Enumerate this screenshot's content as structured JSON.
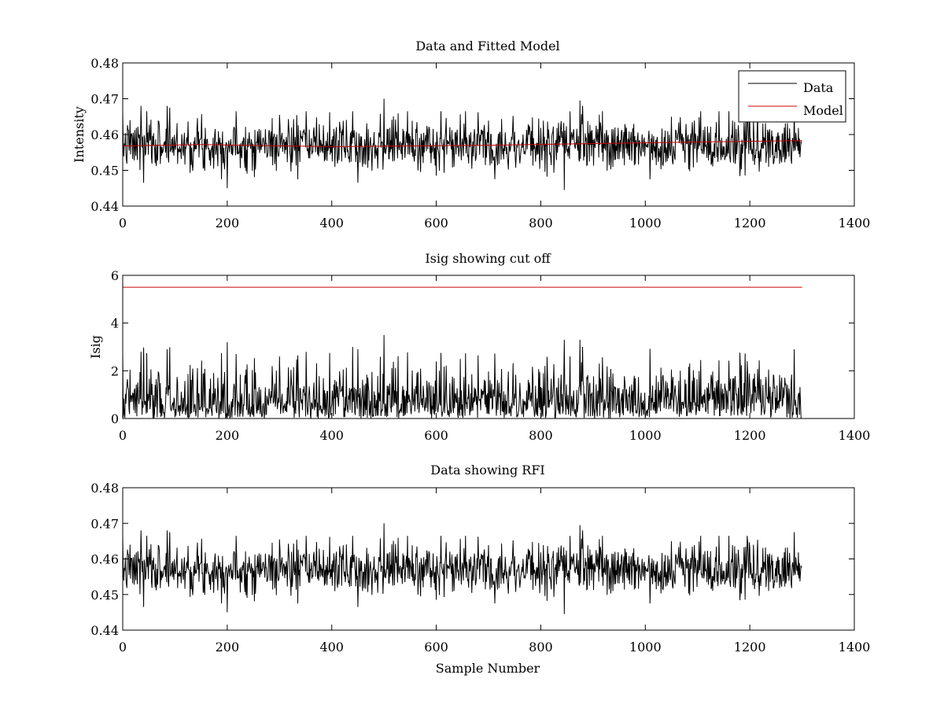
{
  "chart_data": [
    {
      "type": "line",
      "title": "Data and Fitted Model",
      "xlabel": "",
      "ylabel": "Intensity",
      "xlim": [
        0,
        1400
      ],
      "ylim": [
        0.44,
        0.48
      ],
      "xticks": [
        "0",
        "200",
        "400",
        "600",
        "800",
        "1000",
        "1200",
        "1400"
      ],
      "yticks": [
        "0.44",
        "0.45",
        "0.46",
        "0.47",
        "0.48"
      ],
      "legend": {
        "placement": "top-right",
        "entries": [
          "Data",
          "Model"
        ]
      },
      "series": [
        {
          "name": "Data",
          "color": "#000000",
          "generator": {
            "kind": "noisy",
            "n": 1300,
            "mean": 0.4572,
            "sd": 0.0035,
            "seed": 7
          },
          "peaks": [
            [
              20,
              0.4605
            ],
            [
              35,
              0.468
            ],
            [
              40,
              0.4465
            ],
            [
              85,
              0.468
            ],
            [
              90,
              0.4675
            ],
            [
              200,
              0.445
            ],
            [
              300,
              0.4655
            ],
            [
              335,
              0.4475
            ],
            [
              440,
              0.4665
            ],
            [
              450,
              0.4465
            ],
            [
              500,
              0.47
            ],
            [
              545,
              0.4665
            ],
            [
              600,
              0.4485
            ],
            [
              845,
              0.4445
            ],
            [
              875,
              0.4695
            ],
            [
              880,
              0.468
            ],
            [
              1195,
              0.4665
            ],
            [
              1285,
              0.4675
            ],
            [
              1300,
              0.4575
            ]
          ]
        },
        {
          "name": "Model",
          "color": "#cc0000",
          "x": [
            0,
            150,
            400,
            700,
            1000,
            1300
          ],
          "y": [
            0.4568,
            0.4572,
            0.4566,
            0.457,
            0.4577,
            0.4583
          ]
        }
      ]
    },
    {
      "type": "line",
      "title": "Isig showing cut off",
      "xlabel": "",
      "ylabel": "Isig",
      "xlim": [
        0,
        1400
      ],
      "ylim": [
        0,
        6
      ],
      "xticks": [
        "0",
        "200",
        "400",
        "600",
        "800",
        "1000",
        "1200",
        "1400"
      ],
      "yticks": [
        "0",
        "2",
        "4",
        "6"
      ],
      "series": [
        {
          "name": "Isig",
          "color": "#000000",
          "derived_from": 0,
          "peaks": [
            [
              35,
              2.8
            ],
            [
              85,
              2.9
            ],
            [
              200,
              3.2
            ],
            [
              300,
              2.6
            ],
            [
              440,
              3.0
            ],
            [
              500,
              3.5
            ],
            [
              845,
              3.3
            ],
            [
              875,
              3.3
            ],
            [
              1285,
              2.9
            ]
          ]
        },
        {
          "name": "cut off",
          "color": "#cc0000",
          "x": [
            0,
            1300
          ],
          "y": [
            5.5,
            5.5
          ]
        }
      ]
    },
    {
      "type": "line",
      "title": "Data showing RFI",
      "xlabel": "Sample Number",
      "ylabel": "",
      "xlim": [
        0,
        1400
      ],
      "ylim": [
        0.44,
        0.48
      ],
      "xticks": [
        "0",
        "200",
        "400",
        "600",
        "800",
        "1000",
        "1200",
        "1400"
      ],
      "yticks": [
        "0.44",
        "0.45",
        "0.46",
        "0.47",
        "0.48"
      ],
      "series": [
        {
          "name": "Data",
          "color": "#000000",
          "derived_from": 0
        }
      ]
    }
  ]
}
